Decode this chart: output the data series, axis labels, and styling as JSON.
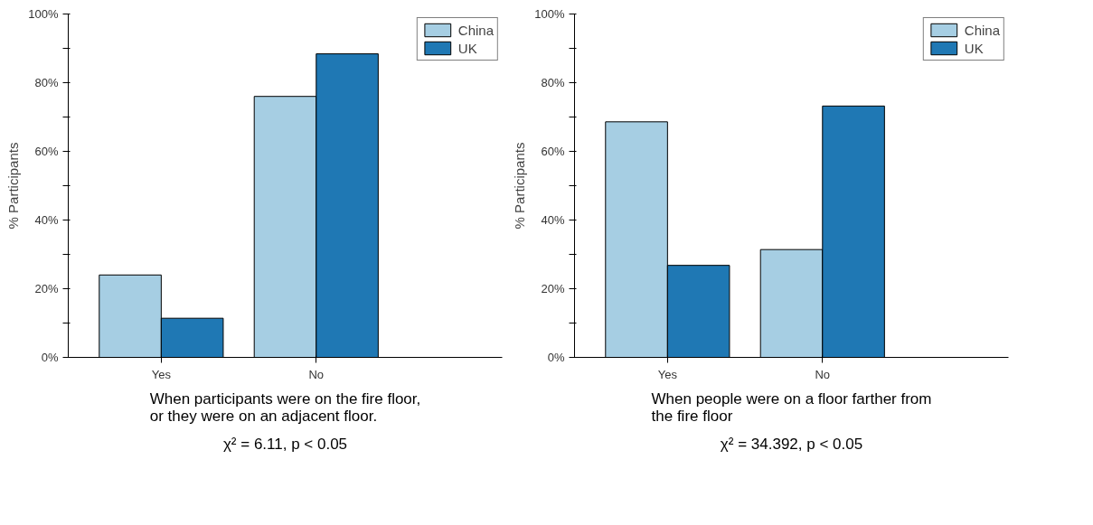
{
  "chart_data": [
    {
      "type": "bar",
      "categories": [
        "Yes",
        "No"
      ],
      "ylabel": "% Participants",
      "ylim": [
        0,
        100
      ],
      "yticks": [
        {
          "value": 0,
          "label": "0%"
        },
        {
          "value": 10,
          "label": null
        },
        {
          "value": 20,
          "label": "20%"
        },
        {
          "value": 30,
          "label": null
        },
        {
          "value": 40,
          "label": "40%"
        },
        {
          "value": 50,
          "label": null
        },
        {
          "value": 60,
          "label": "60%"
        },
        {
          "value": 70,
          "label": null
        },
        {
          "value": 80,
          "label": "80%"
        },
        {
          "value": 90,
          "label": null
        },
        {
          "value": 100,
          "label": "100%"
        }
      ],
      "series": [
        {
          "name": "China",
          "color": "#a6cee3",
          "values": [
            24,
            76
          ]
        },
        {
          "name": "UK",
          "color": "#1f78b4",
          "values": [
            11.4,
            88.4
          ]
        }
      ],
      "legend": "top right",
      "grid": false,
      "annotations": [
        "When participants were on the fire floor, or they were on an adjacent floor.",
        "χ² = 6.11, p < 0.05"
      ]
    },
    {
      "type": "bar",
      "categories": [
        "Yes",
        "No"
      ],
      "ylabel": "% Participants",
      "ylim": [
        0,
        100
      ],
      "yticks": [
        {
          "value": 0,
          "label": "0%"
        },
        {
          "value": 10,
          "label": null
        },
        {
          "value": 20,
          "label": "20%"
        },
        {
          "value": 30,
          "label": null
        },
        {
          "value": 40,
          "label": "40%"
        },
        {
          "value": 50,
          "label": null
        },
        {
          "value": 60,
          "label": "60%"
        },
        {
          "value": 70,
          "label": null
        },
        {
          "value": 80,
          "label": "80%"
        },
        {
          "value": 90,
          "label": null
        },
        {
          "value": 100,
          "label": "100%"
        }
      ],
      "series": [
        {
          "name": "China",
          "color": "#a6cee3",
          "values": [
            68.6,
            31.4
          ]
        },
        {
          "name": "UK",
          "color": "#1f78b4",
          "values": [
            26.8,
            73.2
          ]
        }
      ],
      "legend": "top right",
      "grid": false,
      "annotations": [
        "When people were on a floor farther from the fire floor",
        "χ² = 34.392, p < 0.05"
      ]
    }
  ]
}
